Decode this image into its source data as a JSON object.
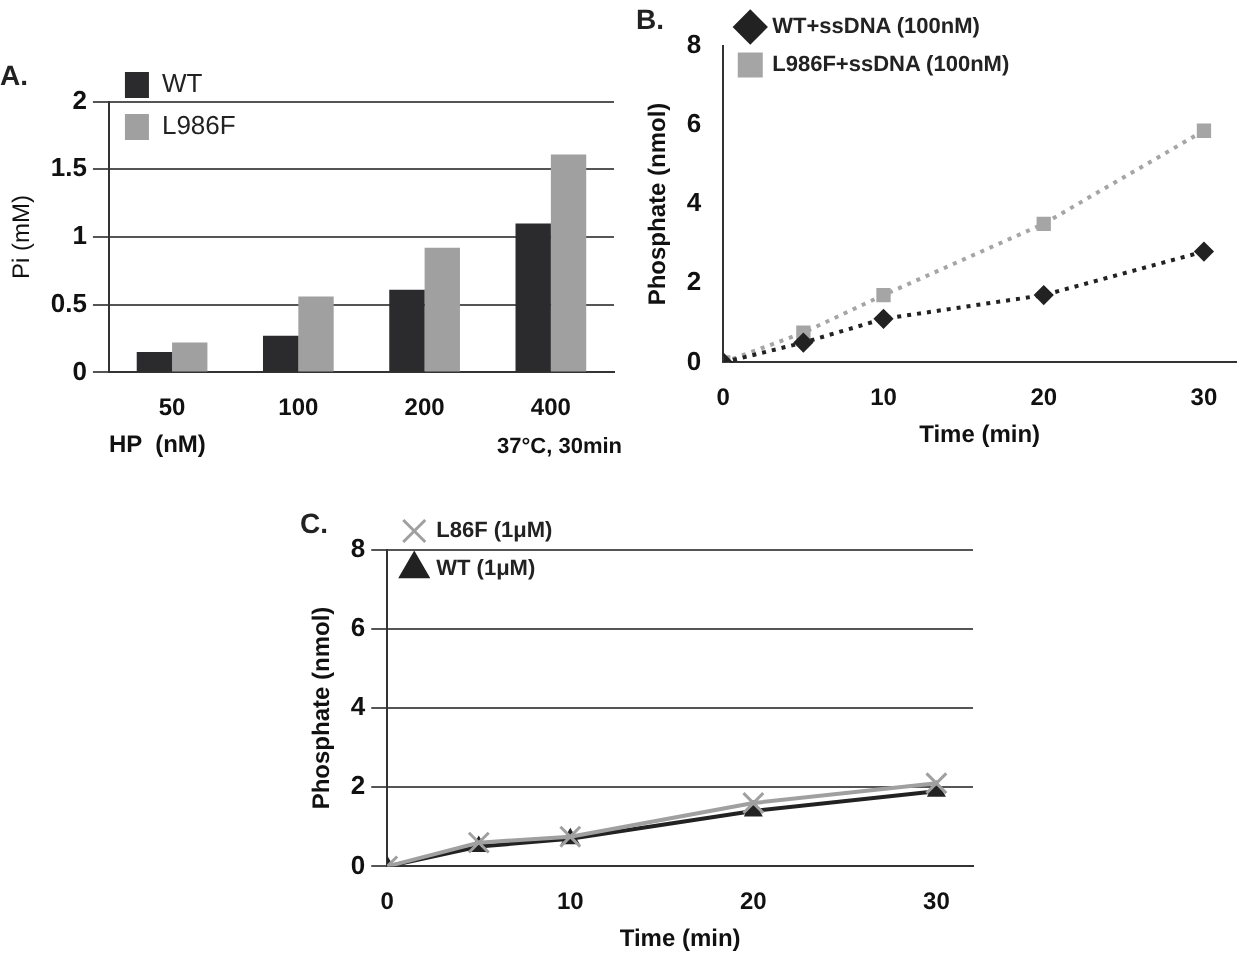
{
  "chart_data": [
    {
      "type": "bar",
      "title": "A.",
      "xlabel": "HP  (nM)",
      "ylabel": "Pi (mM)",
      "categories": [
        "50",
        "100",
        "200",
        "400"
      ],
      "series": [
        {
          "name": "WT",
          "color": "#2b2b2e",
          "values": [
            0.15,
            0.27,
            0.61,
            1.1
          ]
        },
        {
          "name": "L986F",
          "color": "#a0a0a0",
          "values": [
            0.22,
            0.56,
            0.92,
            1.61
          ]
        }
      ],
      "ylim": [
        0,
        2
      ],
      "yticks": [
        0,
        0.5,
        1,
        1.5,
        2
      ],
      "grid": "y",
      "legend": "top left",
      "annotations": [
        "37°C, 30min"
      ]
    },
    {
      "type": "line",
      "title": "B.",
      "xlabel": "Time (min)",
      "ylabel": "Phosphate (nmol)",
      "x": [
        0,
        5,
        10,
        20,
        30
      ],
      "series": [
        {
          "name": "WT+ssDNA (100nM)",
          "color": "#222222",
          "values": [
            0,
            0.5,
            1.1,
            1.7,
            2.8
          ],
          "marker": "diamond"
        },
        {
          "name": "L986F+ssDNA (100nM)",
          "color": "#a5a5a5",
          "values": [
            0,
            0.75,
            1.7,
            3.5,
            5.85
          ],
          "marker": "square"
        }
      ],
      "xlim": [
        0,
        32
      ],
      "xticks": [
        0,
        10,
        20,
        30
      ],
      "ylim": [
        0,
        8
      ],
      "yticks": [
        0,
        2,
        4,
        6,
        8
      ],
      "grid": false,
      "legend": "top left",
      "line_style": "dotted"
    },
    {
      "type": "line",
      "title": "C.",
      "xlabel": "Time (min)",
      "ylabel": "Phosphate (nmol)",
      "x": [
        0,
        5,
        10,
        20,
        30
      ],
      "series": [
        {
          "name": "WT (1μM)",
          "color": "#222222",
          "values": [
            0,
            0.5,
            0.7,
            1.4,
            1.9
          ],
          "marker": "triangle"
        },
        {
          "name": "L86F (1μM)",
          "color": "#a0a0a0",
          "values": [
            0,
            0.6,
            0.75,
            1.6,
            2.1
          ],
          "marker": "cross"
        }
      ],
      "xlim": [
        0,
        32
      ],
      "xticks": [
        0,
        10,
        20,
        30
      ],
      "ylim": [
        0,
        8
      ],
      "yticks": [
        0,
        2,
        4,
        6,
        8
      ],
      "grid": "y",
      "legend": "top left",
      "line_style": "solid"
    }
  ]
}
